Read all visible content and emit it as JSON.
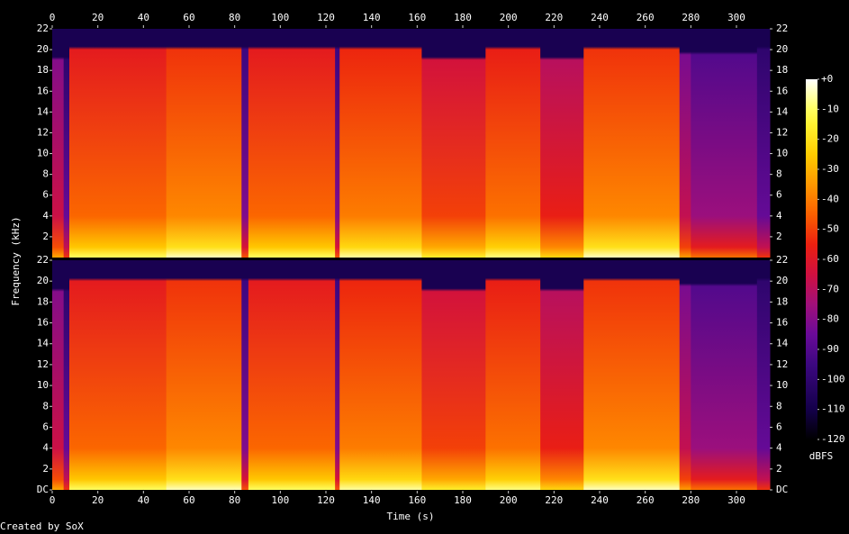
{
  "chart_data": {
    "type": "spectrogram",
    "xlabel": "Time (s)",
    "ylabel": "Frequency (kHz)",
    "colorbar_label": "dBFS",
    "credit": "Created by SoX",
    "xlim": [
      0,
      314.6
    ],
    "xticks": [
      0,
      20,
      40,
      60,
      80,
      100,
      120,
      140,
      160,
      180,
      200,
      220,
      240,
      260,
      280,
      300
    ],
    "ylim": [
      0,
      22
    ],
    "yticks": [
      {
        "value": 0,
        "label": "DC"
      },
      2,
      4,
      6,
      8,
      10,
      12,
      14,
      16,
      18,
      20,
      22
    ],
    "clim": [
      -120,
      0
    ],
    "cticks": [
      {
        "value": 0,
        "label": "+0"
      },
      -10,
      -20,
      -30,
      -40,
      -50,
      -60,
      -70,
      -80,
      -90,
      -100,
      -110,
      -120
    ],
    "colormap": [
      {
        "value": -120,
        "color": "#000000"
      },
      {
        "value": -110,
        "color": "#14004a"
      },
      {
        "value": -95,
        "color": "#3c0880"
      },
      {
        "value": -85,
        "color": "#6a0a98"
      },
      {
        "value": -75,
        "color": "#a0107a"
      },
      {
        "value": -65,
        "color": "#d01040"
      },
      {
        "value": -55,
        "color": "#ec2010"
      },
      {
        "value": -45,
        "color": "#fa6000"
      },
      {
        "value": -35,
        "color": "#ff9800"
      },
      {
        "value": -25,
        "color": "#ffcc00"
      },
      {
        "value": -12,
        "color": "#ffff40"
      },
      {
        "value": 0,
        "color": "#ffffff"
      }
    ],
    "sections": [
      {
        "start": 0,
        "end": 5,
        "level": -80,
        "cutoff": 19
      },
      {
        "start": 5,
        "end": 7.5,
        "level": -100,
        "cutoff": 19
      },
      {
        "start": 7.5,
        "end": 50,
        "level": -58,
        "cutoff": 20
      },
      {
        "start": 50,
        "end": 83,
        "level": -52,
        "cutoff": 20
      },
      {
        "start": 83,
        "end": 86,
        "level": -95,
        "cutoff": 20
      },
      {
        "start": 86,
        "end": 124,
        "level": -58,
        "cutoff": 20
      },
      {
        "start": 124,
        "end": 126,
        "level": -95,
        "cutoff": 20
      },
      {
        "start": 126,
        "end": 162,
        "level": -54,
        "cutoff": 20
      },
      {
        "start": 162,
        "end": 190,
        "level": -64,
        "cutoff": 19
      },
      {
        "start": 190,
        "end": 214,
        "level": -56,
        "cutoff": 20
      },
      {
        "start": 214,
        "end": 233,
        "level": -70,
        "cutoff": 19
      },
      {
        "start": 233,
        "end": 275,
        "level": -52,
        "cutoff": 20
      },
      {
        "start": 275,
        "end": 280,
        "level": -82,
        "cutoff": 19.5
      },
      {
        "start": 280,
        "end": 309,
        "level": -90,
        "cutoff": 19.5
      },
      {
        "start": 309,
        "end": 314.6,
        "level": -100,
        "cutoff": 20
      }
    ]
  }
}
